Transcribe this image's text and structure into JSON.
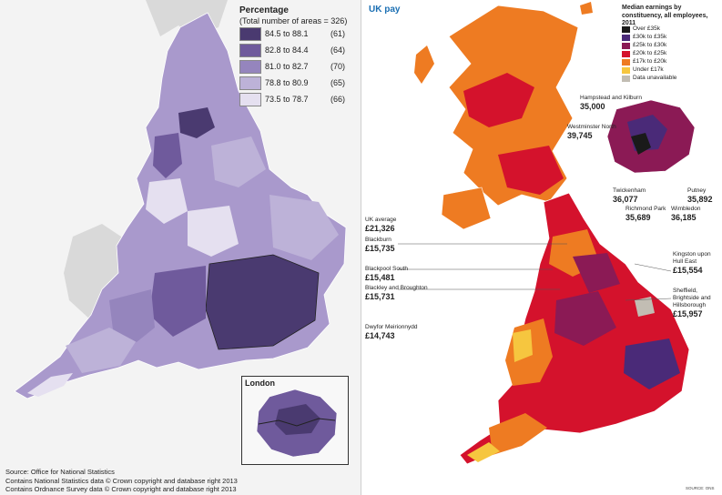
{
  "left_map": {
    "legend_title": "Percentage",
    "legend_subtitle": "(Total number of areas = 326)",
    "legend": [
      {
        "range": "84.5 to 88.1",
        "count": "(61)",
        "color": "#4a3a70"
      },
      {
        "range": "82.8 to 84.4",
        "count": "(64)",
        "color": "#6f5a9c"
      },
      {
        "range": "81.0 to 82.7",
        "count": "(70)",
        "color": "#9585bd"
      },
      {
        "range": "78.8 to 80.9",
        "count": "(65)",
        "color": "#bdb2d8"
      },
      {
        "range": "73.5 to 78.7",
        "count": "(66)",
        "color": "#e5e0f0"
      }
    ],
    "inset_title": "London",
    "source_lines": [
      "Source: Office for National Statistics",
      "Contains National Statistics data © Crown copyright and database right 2013",
      "Contains Ordnance Survey data © Crown copyright and database right 2013"
    ]
  },
  "right_map": {
    "title": "UK pay",
    "legend_title": "Median earnings by constituency, all employees, 2011",
    "legend": [
      {
        "label": "Over £35k",
        "color": "#1a1a1a"
      },
      {
        "label": "£30k to £35k",
        "color": "#4a2a78"
      },
      {
        "label": "£25k to £30k",
        "color": "#8b1a55"
      },
      {
        "label": "£20k to £25k",
        "color": "#d4122c"
      },
      {
        "label": "£17k to £20k",
        "color": "#ee7b22"
      },
      {
        "label": "Under £17k",
        "color": "#f6c63f"
      },
      {
        "label": "Data unavailable",
        "color": "#c2bdb3"
      }
    ],
    "annotations": {
      "uk_avg": {
        "name": "UK average",
        "value": "£21,326"
      },
      "blackburn": {
        "name": "Blackburn",
        "value": "£15,735"
      },
      "blackpool": {
        "name": "Blackpool South",
        "value": "£15,481"
      },
      "blackley": {
        "name": "Blackley and Broughton",
        "value": "£15,731"
      },
      "dwyfor": {
        "name": "Dwyfor Meirionnydd",
        "value": "£14,743"
      },
      "hampstead": {
        "name": "Hampstead and Kilburn",
        "value": "35,000"
      },
      "westminster": {
        "name": "Westminster North",
        "value": "39,745"
      },
      "twickenham": {
        "name": "Twickenham",
        "value": "36,077"
      },
      "richmond": {
        "name": "Richmond Park",
        "value": "35,689"
      },
      "putney": {
        "name": "Putney",
        "value": "35,892"
      },
      "wimbledon": {
        "name": "Wimbledon",
        "value": "36,185"
      },
      "kingston": {
        "name": "Kingston upon Hull East",
        "value": "£15,554"
      },
      "sheffield": {
        "name": "Sheffield, Brightside and Hillsborough",
        "value": "£15,957"
      }
    },
    "source": "SOURCE: ONS"
  }
}
